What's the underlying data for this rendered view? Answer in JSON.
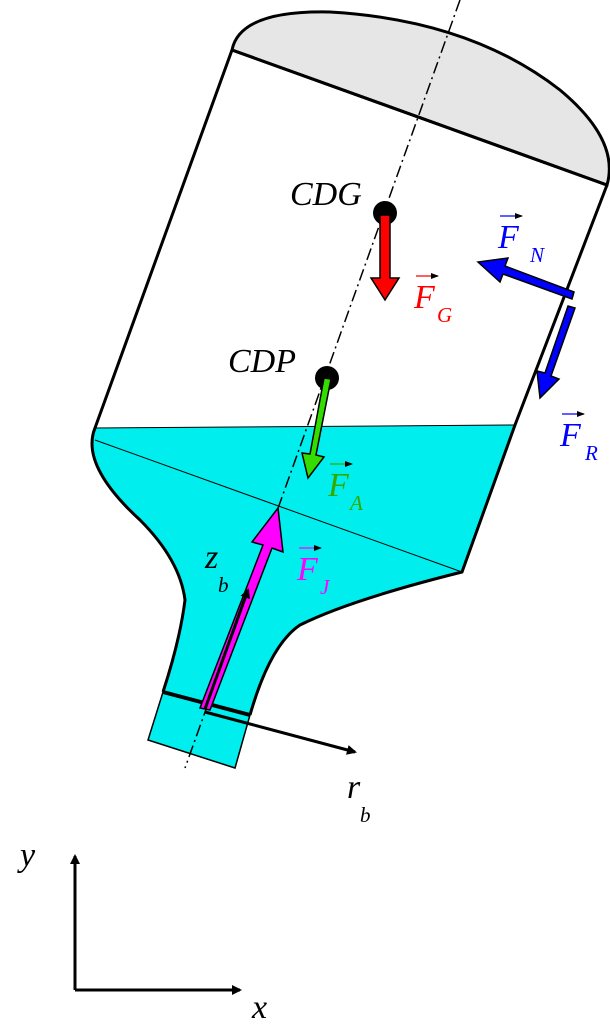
{
  "points": {
    "cdg": "CDG",
    "cdp": "CDP"
  },
  "forces": {
    "gravity": {
      "symbol": "F",
      "sub": "G"
    },
    "normal": {
      "symbol": "F",
      "sub": "N"
    },
    "friction": {
      "symbol": "F",
      "sub": "R"
    },
    "archimedes": {
      "symbol": "F",
      "sub": "A"
    },
    "jet": {
      "symbol": "F",
      "sub": "J"
    }
  },
  "body_axes": {
    "z": {
      "symbol": "z",
      "sub": "b"
    },
    "r": {
      "symbol": "r",
      "sub": "b"
    }
  },
  "global_axes": {
    "x": "x",
    "y": "y"
  }
}
